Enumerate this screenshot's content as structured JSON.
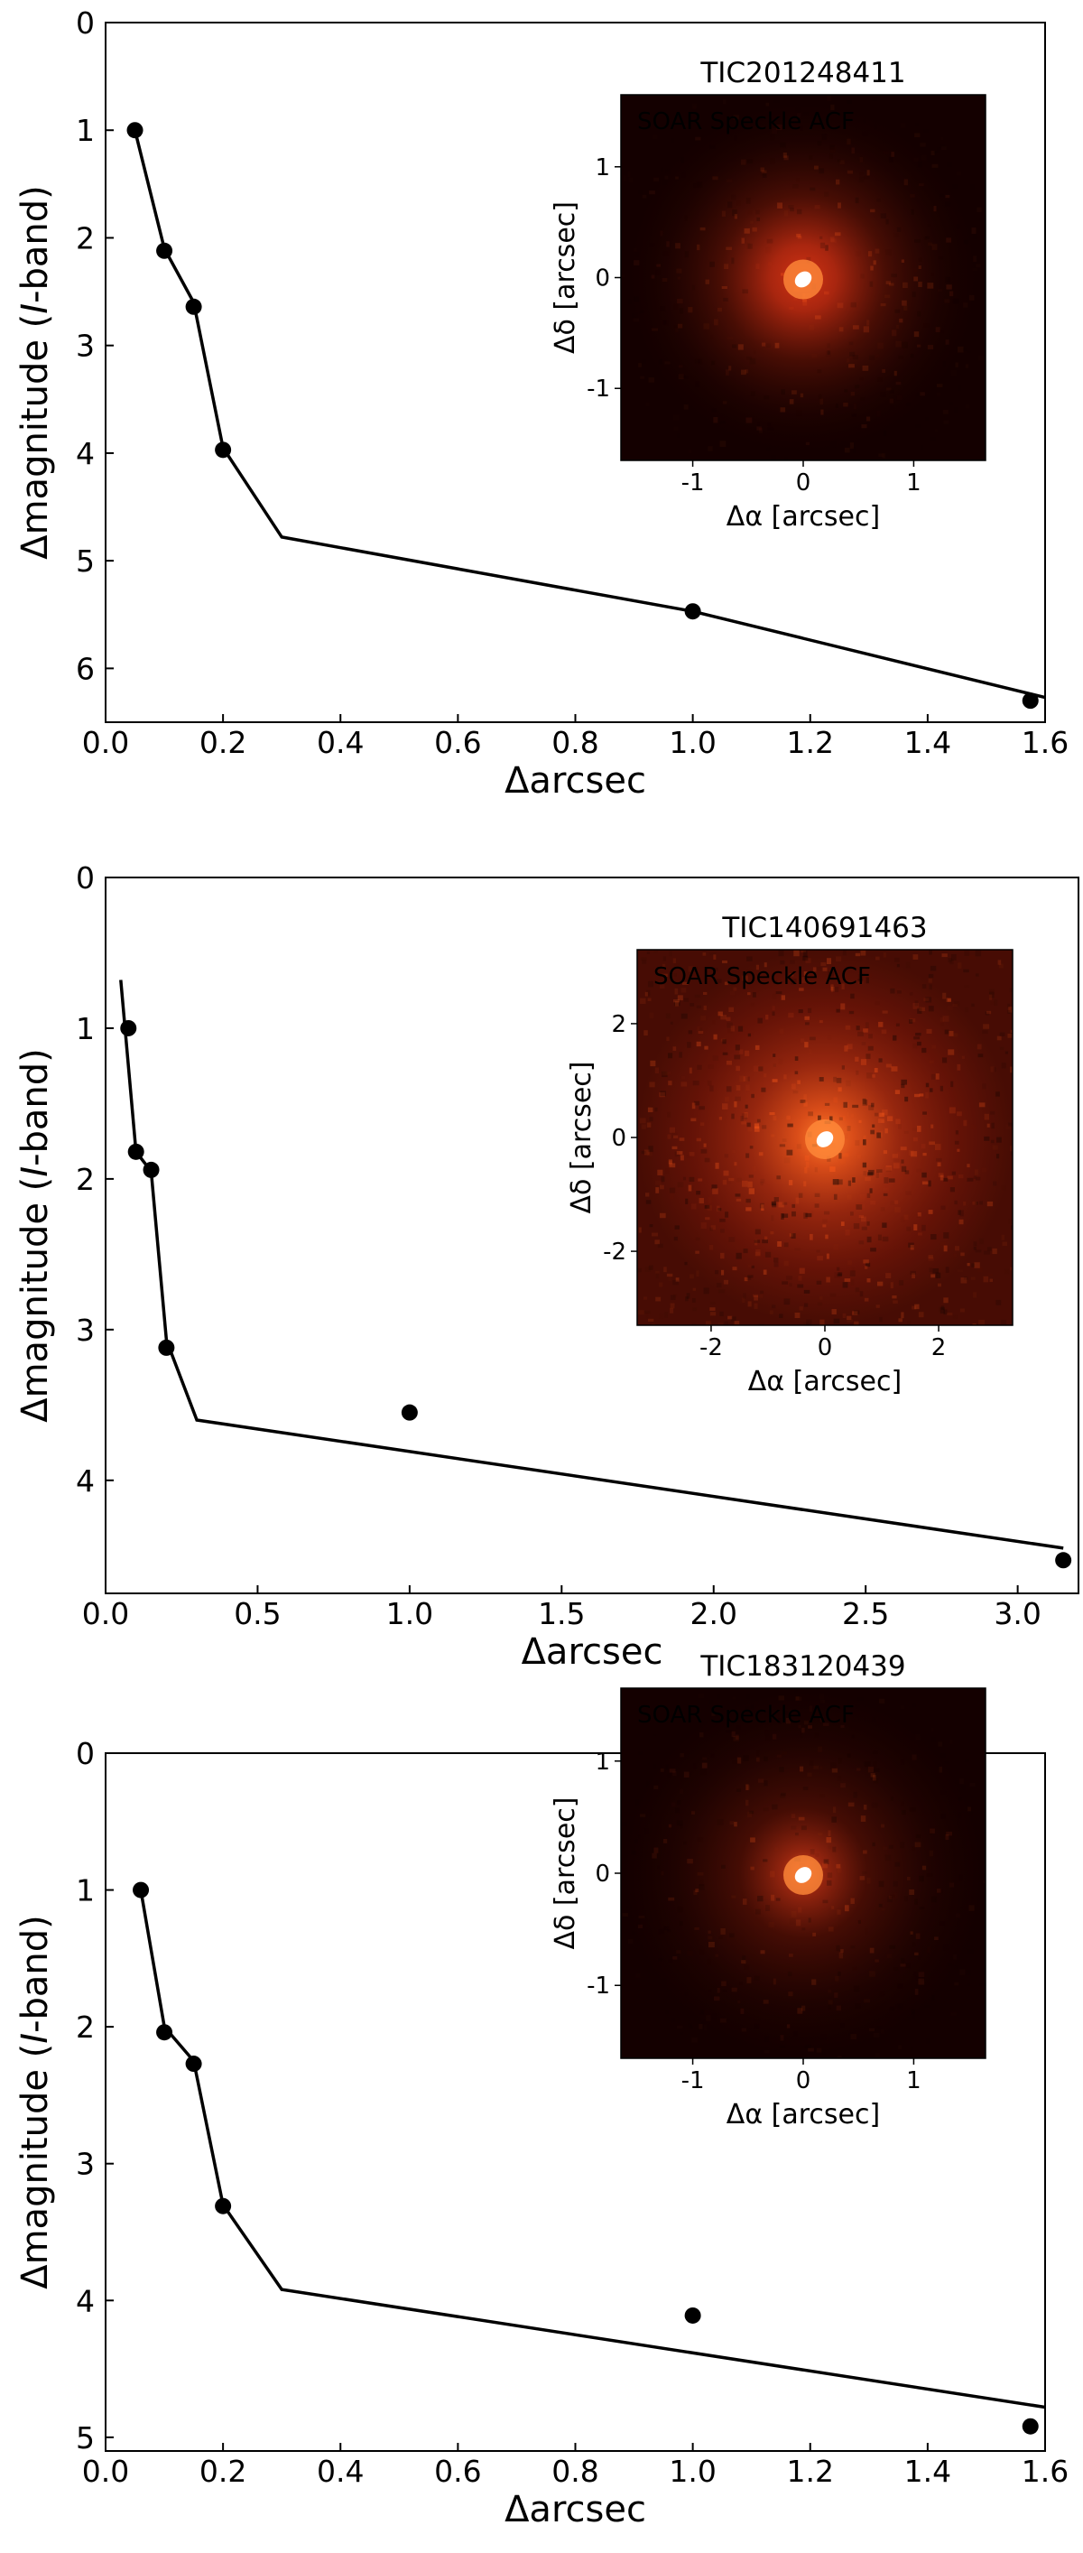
{
  "colors": {
    "axis": "#000000",
    "marker": "#000000",
    "inset_background": "#140000",
    "inset_glow": "#d23214",
    "inset_core": "#ffffff"
  },
  "chart_data": [
    {
      "type": "line",
      "title": "",
      "xlabel": "Δarcsec",
      "ylabel": "Δmagnitude (I-band)",
      "ylabel_parts": [
        "Δmagnitude (",
        "I",
        "-band)"
      ],
      "xlim": [
        0.0,
        1.6
      ],
      "ylim": [
        6.5,
        0
      ],
      "y_inverted": true,
      "xticks": [
        0.0,
        0.2,
        0.4,
        0.6,
        0.8,
        1.0,
        1.2,
        1.4,
        1.6
      ],
      "xticklabels": [
        "0.0",
        "0.2",
        "0.4",
        "0.6",
        "0.8",
        "1.0",
        "1.2",
        "1.4",
        "1.6"
      ],
      "yticks": [
        0,
        1,
        2,
        3,
        4,
        5,
        6
      ],
      "yticklabels": [
        "0",
        "1",
        "2",
        "3",
        "4",
        "5",
        "6"
      ],
      "series": [
        {
          "kind": "line",
          "x": [
            0.05,
            0.1,
            0.15,
            0.2,
            0.3,
            1.0,
            1.6
          ],
          "y": [
            1.0,
            2.1,
            2.6,
            3.95,
            4.78,
            5.47,
            6.27
          ]
        },
        {
          "kind": "scatter",
          "x": [
            0.05,
            0.1,
            0.15,
            0.2,
            1.0,
            1.575
          ],
          "y": [
            1.0,
            2.12,
            2.64,
            3.97,
            5.47,
            6.3
          ]
        }
      ],
      "inset": {
        "title": "TIC201248411",
        "label": "SOAR Speckle ACF",
        "label_color": "#ffffff",
        "xlabel": "Δα [arcsec]",
        "ylabel": "Δδ [arcsec]",
        "xlim": [
          -1.65,
          1.65
        ],
        "ylim": [
          -1.65,
          1.65
        ],
        "xticks": [
          -1,
          0,
          1
        ],
        "xticklabels": [
          "-1",
          "0",
          "1"
        ],
        "yticks": [
          1,
          0,
          -1
        ],
        "yticklabels": [
          "1",
          "0",
          "-1"
        ]
      }
    },
    {
      "type": "line",
      "title": "",
      "xlabel": "Δarcsec",
      "ylabel": "Δmagnitude (I-band)",
      "ylabel_parts": [
        "Δmagnitude (",
        "I",
        "-band)"
      ],
      "xlim": [
        0.0,
        3.2
      ],
      "ylim": [
        4.75,
        0
      ],
      "y_inverted": true,
      "xticks": [
        0.0,
        0.5,
        1.0,
        1.5,
        2.0,
        2.5,
        3.0
      ],
      "xticklabels": [
        "0.0",
        "0.5",
        "1.0",
        "1.5",
        "2.0",
        "2.5",
        "3.0"
      ],
      "yticks": [
        0,
        1,
        2,
        3,
        4
      ],
      "yticklabels": [
        "0",
        "1",
        "2",
        "3",
        "4"
      ],
      "series": [
        {
          "kind": "line",
          "x": [
            0.05,
            0.1,
            0.15,
            0.2,
            0.3,
            3.15
          ],
          "y": [
            0.68,
            1.82,
            1.95,
            3.07,
            3.6,
            4.45
          ]
        },
        {
          "kind": "scatter",
          "x": [
            0.075,
            0.1,
            0.15,
            0.2,
            1.0,
            3.15
          ],
          "y": [
            1.0,
            1.82,
            1.94,
            3.12,
            3.55,
            4.53
          ]
        }
      ],
      "inset": {
        "title": "TIC140691463",
        "label": "SOAR Speckle ACF",
        "label_color": "#3a0a00",
        "xlabel": "Δα [arcsec]",
        "ylabel": "Δδ [arcsec]",
        "xlim": [
          -3.3,
          3.3
        ],
        "ylim": [
          -3.3,
          3.3
        ],
        "xticks": [
          -2,
          0,
          2
        ],
        "xticklabels": [
          "-2",
          "0",
          "2"
        ],
        "yticks": [
          2,
          0,
          -2
        ],
        "yticklabels": [
          "2",
          "0",
          "-2"
        ]
      }
    },
    {
      "type": "line",
      "title": "",
      "xlabel": "Δarcsec",
      "ylabel": "Δmagnitude (I-band)",
      "ylabel_parts": [
        "Δmagnitude (",
        "I",
        "-band)"
      ],
      "xlim": [
        0.0,
        1.6
      ],
      "ylim": [
        5.1,
        0
      ],
      "y_inverted": true,
      "xticks": [
        0.0,
        0.2,
        0.4,
        0.6,
        0.8,
        1.0,
        1.2,
        1.4,
        1.6
      ],
      "xticklabels": [
        "0.0",
        "0.2",
        "0.4",
        "0.6",
        "0.8",
        "1.0",
        "1.2",
        "1.4",
        "1.6"
      ],
      "yticks": [
        0,
        1,
        2,
        3,
        4,
        5
      ],
      "yticklabels": [
        "0",
        "1",
        "2",
        "3",
        "4",
        "5"
      ],
      "series": [
        {
          "kind": "line",
          "x": [
            0.06,
            0.1,
            0.15,
            0.2,
            0.3,
            1.6
          ],
          "y": [
            1.0,
            2.0,
            2.25,
            3.3,
            3.92,
            4.78
          ]
        },
        {
          "kind": "scatter",
          "x": [
            0.06,
            0.1,
            0.15,
            0.2,
            1.0,
            1.575
          ],
          "y": [
            1.0,
            2.04,
            2.27,
            3.31,
            4.11,
            4.92
          ]
        }
      ],
      "inset": {
        "title": "TIC183120439",
        "label": "SOAR Speckle ACF",
        "label_color": "#ffffff",
        "xlabel": "Δα [arcsec]",
        "ylabel": "Δδ [arcsec]",
        "xlim": [
          -1.65,
          1.65
        ],
        "ylim": [
          -1.65,
          1.65
        ],
        "xticks": [
          -1,
          0,
          1
        ],
        "xticklabels": [
          "-1",
          "0",
          "1"
        ],
        "yticks": [
          1,
          0,
          -1
        ],
        "yticklabels": [
          "1",
          "0",
          "-1"
        ]
      }
    }
  ]
}
